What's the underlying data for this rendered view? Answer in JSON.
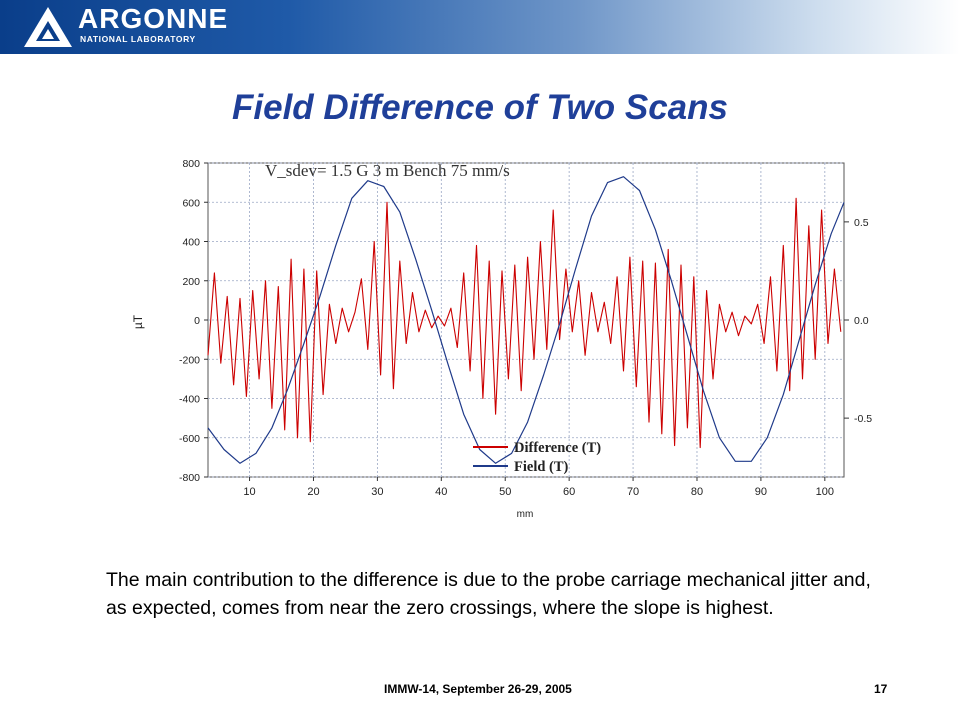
{
  "header": {
    "logo_text": "ARGONNE",
    "logo_subtext": "NATIONAL LABORATORY"
  },
  "slide": {
    "title": "Field Difference of Two Scans",
    "caption": "The main contribution to the difference is due to the probe carriage mechanical jitter and, as expected, comes from near the zero crossings, where the slope is highest."
  },
  "footer": {
    "conference": "IMMW-14, September 26-29, 2005",
    "page_number": "17"
  },
  "colors": {
    "brand": "#0a3e8a",
    "title": "#1f3f99",
    "difference": "#cc0000",
    "field": "#1f3a8a"
  },
  "chart_data": {
    "type": "line",
    "title": "V_sdev= 1.5 G 3 m Bench 75 mm/s",
    "xlabel": "mm",
    "ylabel": "µT",
    "xlim": [
      3.5,
      103
    ],
    "ylim": [
      -800,
      800
    ],
    "y2lim": [
      -0.8,
      0.8
    ],
    "x_ticks": [
      10,
      20,
      30,
      40,
      50,
      60,
      70,
      80,
      90,
      100
    ],
    "y_ticks": [
      -800,
      -600,
      -400,
      -200,
      0,
      200,
      400,
      600,
      800
    ],
    "y2_ticks": [
      -0.5,
      0.0,
      0.5
    ],
    "y2_tick_labels": [
      "-0.5",
      "0.0",
      "0.5"
    ],
    "grid": true,
    "legend": "bottom-center",
    "series": [
      {
        "name": "Difference (T)",
        "axis": "left",
        "x": [
          3.5,
          4.5,
          5.5,
          6.5,
          7.5,
          8.5,
          9.5,
          10.5,
          11.5,
          12.5,
          13.5,
          14.5,
          15.5,
          16.5,
          17.5,
          18.5,
          19.5,
          20.5,
          21.5,
          22.5,
          23.5,
          24.5,
          25.5,
          26.5,
          27.5,
          28.5,
          29.5,
          30.5,
          31.5,
          32.5,
          33.5,
          34.5,
          35.5,
          36.5,
          37.5,
          38.5,
          39.5,
          40.5,
          41.5,
          42.5,
          43.5,
          44.5,
          45.5,
          46.5,
          47.5,
          48.5,
          49.5,
          50.5,
          51.5,
          52.5,
          53.5,
          54.5,
          55.5,
          56.5,
          57.5,
          58.5,
          59.5,
          60.5,
          61.5,
          62.5,
          63.5,
          64.5,
          65.5,
          66.5,
          67.5,
          68.5,
          69.5,
          70.5,
          71.5,
          72.5,
          73.5,
          74.5,
          75.5,
          76.5,
          77.5,
          78.5,
          79.5,
          80.5,
          81.5,
          82.5,
          83.5,
          84.5,
          85.5,
          86.5,
          87.5,
          88.5,
          89.5,
          90.5,
          91.5,
          92.5,
          93.5,
          94.5,
          95.5,
          96.5,
          97.5,
          98.5,
          99.5,
          100.5,
          101.5,
          102.5
        ],
        "values": [
          -180,
          240,
          -220,
          120,
          -330,
          110,
          -390,
          150,
          -300,
          200,
          -450,
          170,
          -560,
          310,
          -600,
          260,
          -620,
          250,
          -380,
          80,
          -120,
          60,
          -60,
          40,
          210,
          -150,
          400,
          -280,
          600,
          -350,
          300,
          -120,
          140,
          -60,
          50,
          -40,
          20,
          -30,
          60,
          -140,
          240,
          -260,
          380,
          -400,
          300,
          -480,
          250,
          -300,
          280,
          -360,
          320,
          -200,
          400,
          -150,
          560,
          -100,
          260,
          -60,
          200,
          -180,
          140,
          -60,
          90,
          -120,
          220,
          -260,
          320,
          -340,
          300,
          -520,
          290,
          -580,
          360,
          -640,
          280,
          -550,
          220,
          -650,
          150,
          -300,
          80,
          -60,
          40,
          -80,
          20,
          -20,
          80,
          -120,
          220,
          -260,
          380,
          -360,
          620,
          -300,
          480,
          -200,
          560,
          -120,
          260,
          -60
        ]
      },
      {
        "name": "Field (T)",
        "axis": "right",
        "x": [
          3.5,
          6,
          8.5,
          11,
          13.5,
          16,
          18.5,
          21,
          23.5,
          26,
          28.5,
          31,
          33.5,
          36,
          38.5,
          41,
          43.5,
          46,
          48.5,
          51,
          53.5,
          56,
          58.5,
          61,
          63.5,
          66,
          68.5,
          71,
          73.5,
          76,
          78.5,
          81,
          83.5,
          86,
          88.5,
          91,
          93.5,
          96,
          98.5,
          101,
          103
        ],
        "values": [
          -0.55,
          -0.66,
          -0.73,
          -0.68,
          -0.55,
          -0.35,
          -0.12,
          0.12,
          0.38,
          0.62,
          0.71,
          0.68,
          0.55,
          0.31,
          0.05,
          -0.22,
          -0.48,
          -0.66,
          -0.73,
          -0.68,
          -0.52,
          -0.28,
          -0.02,
          0.26,
          0.53,
          0.7,
          0.73,
          0.66,
          0.46,
          0.2,
          -0.08,
          -0.36,
          -0.6,
          -0.72,
          -0.72,
          -0.6,
          -0.38,
          -0.1,
          0.18,
          0.44,
          0.6
        ]
      }
    ]
  }
}
